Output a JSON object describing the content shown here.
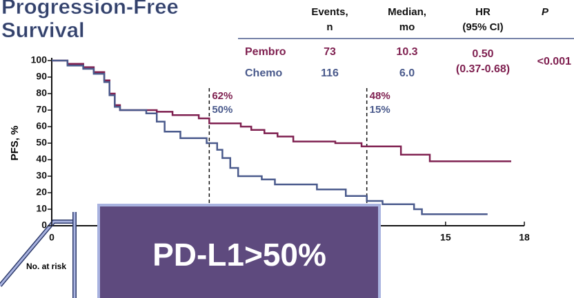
{
  "chart_data": {
    "type": "step",
    "title": [
      "Progression-Free",
      "Survival"
    ],
    "y_label": "PFS, %",
    "at_risk_label": "No. at risk",
    "overlay_label": "PD-L1>50%",
    "xlim": [
      0,
      18
    ],
    "xticks": [
      0,
      15,
      18
    ],
    "ylim": [
      0,
      100
    ],
    "yticks": [
      0,
      10,
      20,
      30,
      40,
      50,
      60,
      70,
      80,
      90,
      100
    ],
    "series": [
      {
        "name": "Pembro",
        "color": "#7f2050",
        "x": [
          0,
          0.6,
          1.2,
          1.6,
          2.0,
          2.2,
          2.4,
          2.6,
          4.0,
          4.6,
          5.6,
          6.0,
          7.2,
          7.6,
          8.1,
          8.6,
          9.2,
          10.8,
          11.8,
          13.3,
          14.4,
          17.5
        ],
        "values": [
          100,
          98,
          96,
          93,
          88,
          80,
          73,
          70,
          69,
          67,
          65,
          62,
          60,
          58,
          56,
          54,
          51,
          50,
          48,
          43,
          39,
          39
        ]
      },
      {
        "name": "Chemo",
        "color": "#4a5a8c",
        "x": [
          0,
          0.6,
          1.2,
          1.6,
          2.0,
          2.2,
          2.4,
          2.6,
          3.6,
          4.0,
          4.3,
          4.9,
          5.9,
          6.3,
          6.5,
          6.8,
          7.1,
          8.0,
          8.5,
          10.1,
          11.2,
          12.0,
          12.6,
          13.8,
          14.1,
          16.6
        ],
        "values": [
          100,
          97,
          95,
          92,
          87,
          79,
          72,
          70,
          68,
          63,
          57,
          53,
          50,
          46,
          41,
          35,
          30,
          28,
          25,
          22,
          18,
          15,
          13,
          10,
          7,
          7
        ]
      }
    ],
    "landmarks": [
      {
        "x": 6,
        "labels": [
          {
            "value": 62,
            "label": "62%"
          },
          {
            "value": 50,
            "label": "50%"
          }
        ]
      },
      {
        "x": 12,
        "labels": [
          {
            "value": 48,
            "label": "48%"
          },
          {
            "value": 15,
            "label": "15%"
          }
        ]
      }
    ],
    "table": {
      "columns": [
        [
          "Events,",
          "n"
        ],
        [
          "Median,",
          "mo"
        ],
        [
          "HR",
          "(95% CI)"
        ],
        [
          "P"
        ]
      ],
      "rows": [
        [
          "Pembro",
          "73",
          "10.3"
        ],
        [
          "Chemo",
          "116",
          "6.0"
        ]
      ],
      "hr": "0.50",
      "hr_ci": "(0.37-0.68)",
      "p": "<0.001"
    }
  }
}
